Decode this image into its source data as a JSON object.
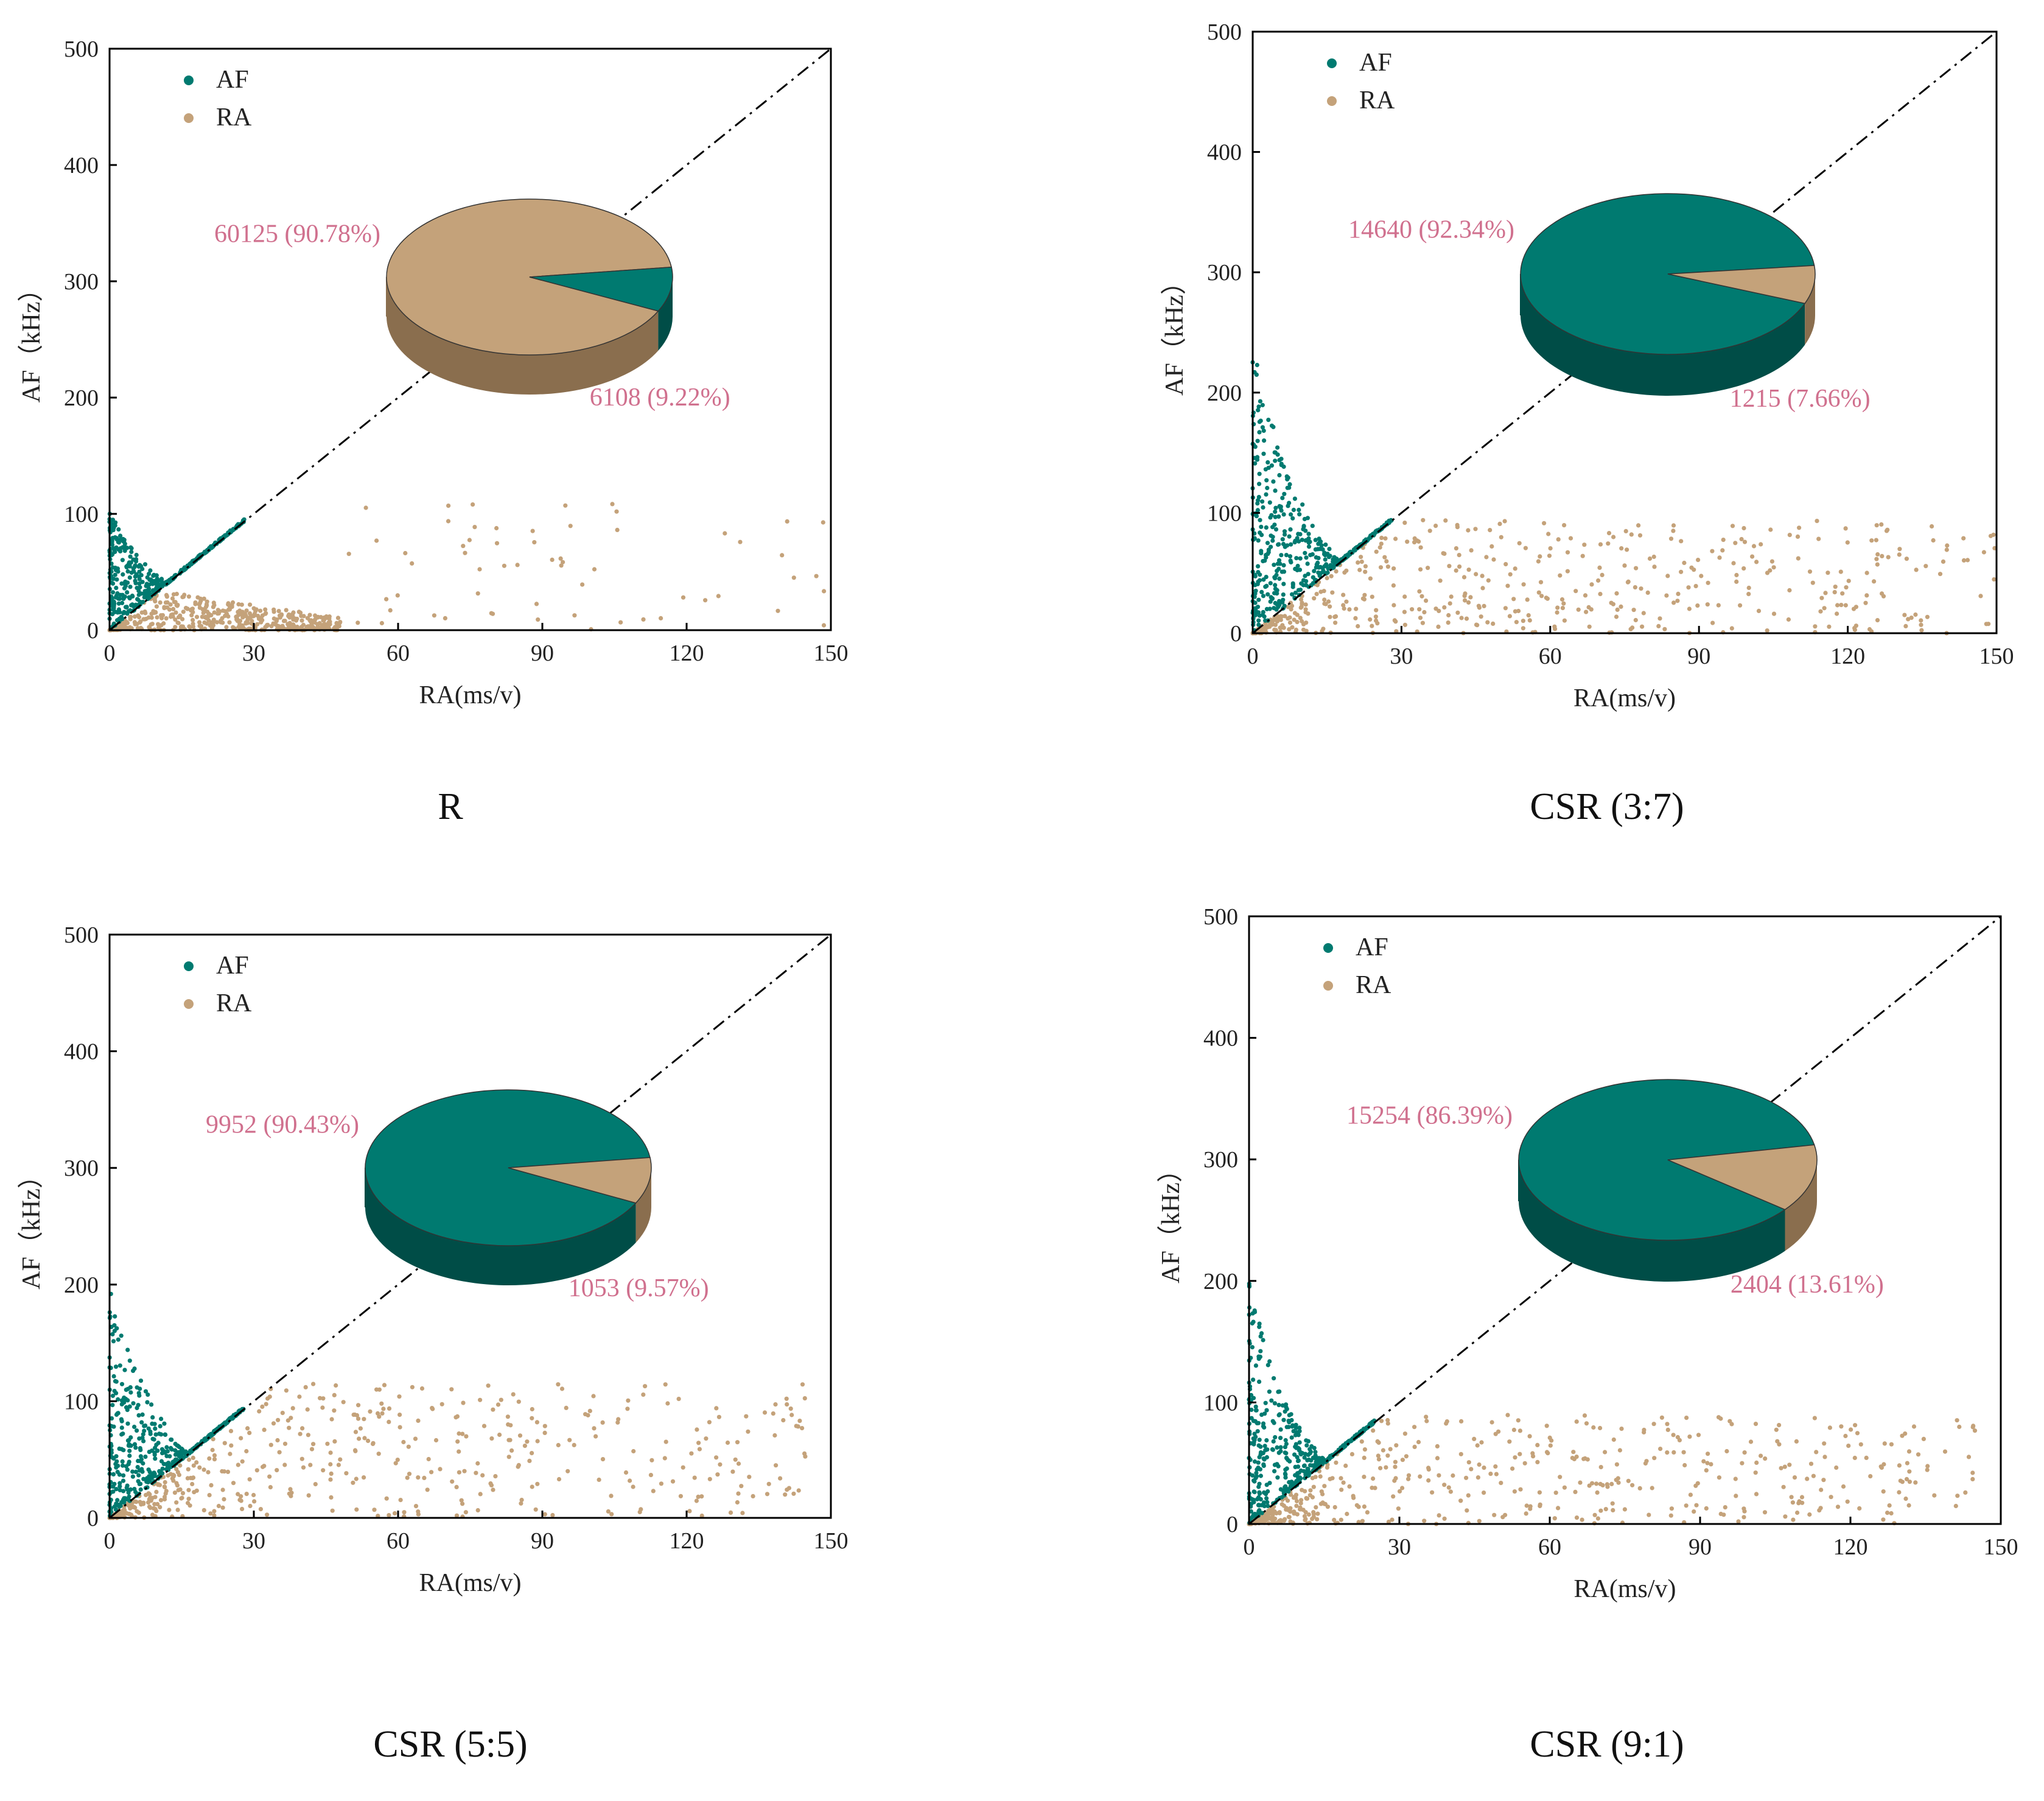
{
  "figure": {
    "colors": {
      "af": "#007a70",
      "af_dark": "#004d47",
      "ra": "#c4a27a",
      "ra_dark": "#8a6e4e",
      "label": "#d0708e",
      "axis": "#000000"
    }
  },
  "chart_data": [
    {
      "type": "scatter",
      "panel_label": "R",
      "xlabel": "RA(ms/v)",
      "ylabel": "AF（kHz）",
      "xlim": [
        0,
        150
      ],
      "ylim": [
        0,
        500
      ],
      "xticks": [
        "0",
        "30",
        "60",
        "90",
        "120",
        "150"
      ],
      "yticks": [
        "0",
        "100",
        "200",
        "300",
        "400",
        "500"
      ],
      "legend": [
        "AF",
        "RA"
      ],
      "legend_position": "top-left",
      "diagonal_line": "dash-dot y = 10/3 x",
      "series": [
        {
          "name": "AF",
          "count": 6108,
          "percent": 9.22,
          "x_range": [
            0,
            28
          ],
          "y_range": [
            0,
            105
          ]
        },
        {
          "name": "RA",
          "count": 60125,
          "percent": 90.78,
          "x_range": [
            0,
            150
          ],
          "y_range": [
            0,
            110
          ]
        }
      ],
      "pie": {
        "type": "pie",
        "slices": [
          {
            "name": "RA",
            "value": 60125,
            "percent": 90.78,
            "label": "60125 (90.78%)"
          },
          {
            "name": "AF",
            "value": 6108,
            "percent": 9.22,
            "label": "6108 (9.22%)"
          }
        ],
        "major_color": "ra"
      }
    },
    {
      "type": "scatter",
      "panel_label": "CSR (3:7)",
      "xlabel": "RA(ms/v)",
      "ylabel": "AF（kHz）",
      "xlim": [
        0,
        150
      ],
      "ylim": [
        0,
        500
      ],
      "xticks": [
        "0",
        "30",
        "60",
        "90",
        "120",
        "150"
      ],
      "yticks": [
        "0",
        "100",
        "200",
        "300",
        "400",
        "500"
      ],
      "legend": [
        "AF",
        "RA"
      ],
      "legend_position": "top-left",
      "diagonal_line": "dash-dot y = 10/3 x",
      "series": [
        {
          "name": "AF",
          "count": 14640,
          "percent": 92.34,
          "x_range": [
            0,
            28
          ],
          "y_range": [
            0,
            240
          ]
        },
        {
          "name": "RA",
          "count": 1215,
          "percent": 7.66,
          "x_range": [
            0,
            150
          ],
          "y_range": [
            0,
            95
          ]
        }
      ],
      "pie": {
        "type": "pie",
        "slices": [
          {
            "name": "AF",
            "value": 14640,
            "percent": 92.34,
            "label": "14640 (92.34%)"
          },
          {
            "name": "RA",
            "value": 1215,
            "percent": 7.66,
            "label": "1215 (7.66%)"
          }
        ],
        "major_color": "af"
      }
    },
    {
      "type": "scatter",
      "panel_label": "CSR (5:5)",
      "xlabel": "RA(ms/v)",
      "ylabel": "AF（kHz）",
      "xlim": [
        0,
        150
      ],
      "ylim": [
        0,
        500
      ],
      "xticks": [
        "0",
        "30",
        "60",
        "90",
        "120",
        "150"
      ],
      "yticks": [
        "0",
        "100",
        "200",
        "300",
        "400",
        "500"
      ],
      "legend": [
        "AF",
        "RA"
      ],
      "legend_position": "top-left",
      "diagonal_line": "dash-dot y = 10/3 x",
      "series": [
        {
          "name": "AF",
          "count": 9952,
          "percent": 90.43,
          "x_range": [
            0,
            28
          ],
          "y_range": [
            0,
            200
          ]
        },
        {
          "name": "RA",
          "count": 1053,
          "percent": 9.57,
          "x_range": [
            0,
            145
          ],
          "y_range": [
            0,
            115
          ]
        }
      ],
      "pie": {
        "type": "pie",
        "slices": [
          {
            "name": "AF",
            "value": 9952,
            "percent": 90.43,
            "label": "9952 (90.43%)"
          },
          {
            "name": "RA",
            "value": 1053,
            "percent": 9.57,
            "label": "1053 (9.57%)"
          }
        ],
        "major_color": "af"
      }
    },
    {
      "type": "scatter",
      "panel_label": "CSR (9:1)",
      "xlabel": "RA(ms/v)",
      "ylabel": "AF（kHz）",
      "xlim": [
        0,
        150
      ],
      "ylim": [
        0,
        500
      ],
      "xticks": [
        "0",
        "30",
        "60",
        "90",
        "120",
        "150"
      ],
      "yticks": [
        "0",
        "100",
        "200",
        "300",
        "400",
        "500"
      ],
      "legend": [
        "AF",
        "RA"
      ],
      "legend_position": "top-left",
      "diagonal_line": "dash-dot y = 10/3 x",
      "series": [
        {
          "name": "AF",
          "count": 15254,
          "percent": 86.39,
          "x_range": [
            0,
            25
          ],
          "y_range": [
            0,
            200
          ]
        },
        {
          "name": "RA",
          "count": 2404,
          "percent": 13.61,
          "x_range": [
            0,
            145
          ],
          "y_range": [
            0,
            90
          ]
        }
      ],
      "pie": {
        "type": "pie",
        "slices": [
          {
            "name": "AF",
            "value": 15254,
            "percent": 86.39,
            "label": "15254 (86.39%)"
          },
          {
            "name": "RA",
            "value": 2404,
            "percent": 13.61,
            "label": "2404 (13.61%)"
          }
        ],
        "major_color": "af"
      }
    }
  ]
}
